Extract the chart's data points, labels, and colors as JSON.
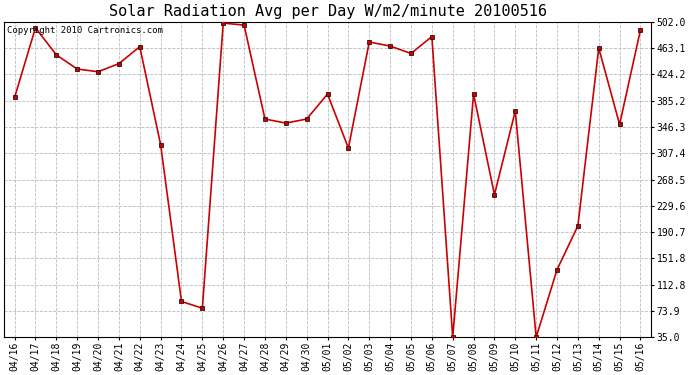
{
  "title": "Solar Radiation Avg per Day W/m2/minute 20100516",
  "copyright_text": "Copyright 2010 Cartronics.com",
  "x_labels": [
    "04/16",
    "04/17",
    "04/18",
    "04/19",
    "04/20",
    "04/21",
    "04/22",
    "04/23",
    "04/24",
    "04/25",
    "04/26",
    "04/27",
    "04/28",
    "04/29",
    "04/30",
    "05/01",
    "05/02",
    "05/03",
    "05/04",
    "05/05",
    "05/06",
    "05/07",
    "05/08",
    "05/09",
    "05/10",
    "05/11",
    "05/12",
    "05/13",
    "05/14",
    "05/15",
    "05/16"
  ],
  "y_values": [
    390,
    493,
    453,
    432,
    428,
    440,
    465,
    320,
    88,
    78,
    500,
    497,
    358,
    352,
    358,
    395,
    315,
    472,
    466,
    455,
    480,
    35,
    395,
    246,
    370,
    35,
    135,
    200,
    463,
    350,
    490
  ],
  "y_ticks": [
    35.0,
    73.9,
    112.8,
    151.8,
    190.7,
    229.6,
    268.5,
    307.4,
    346.3,
    385.2,
    424.2,
    463.1,
    502.0
  ],
  "line_color": "#cc0000",
  "marker_color": "#000000",
  "background_color": "#ffffff",
  "grid_color": "#bbbbbb",
  "title_fontsize": 11,
  "copyright_fontsize": 6.5,
  "tick_fontsize": 7,
  "ylim": [
    35.0,
    502.0
  ]
}
